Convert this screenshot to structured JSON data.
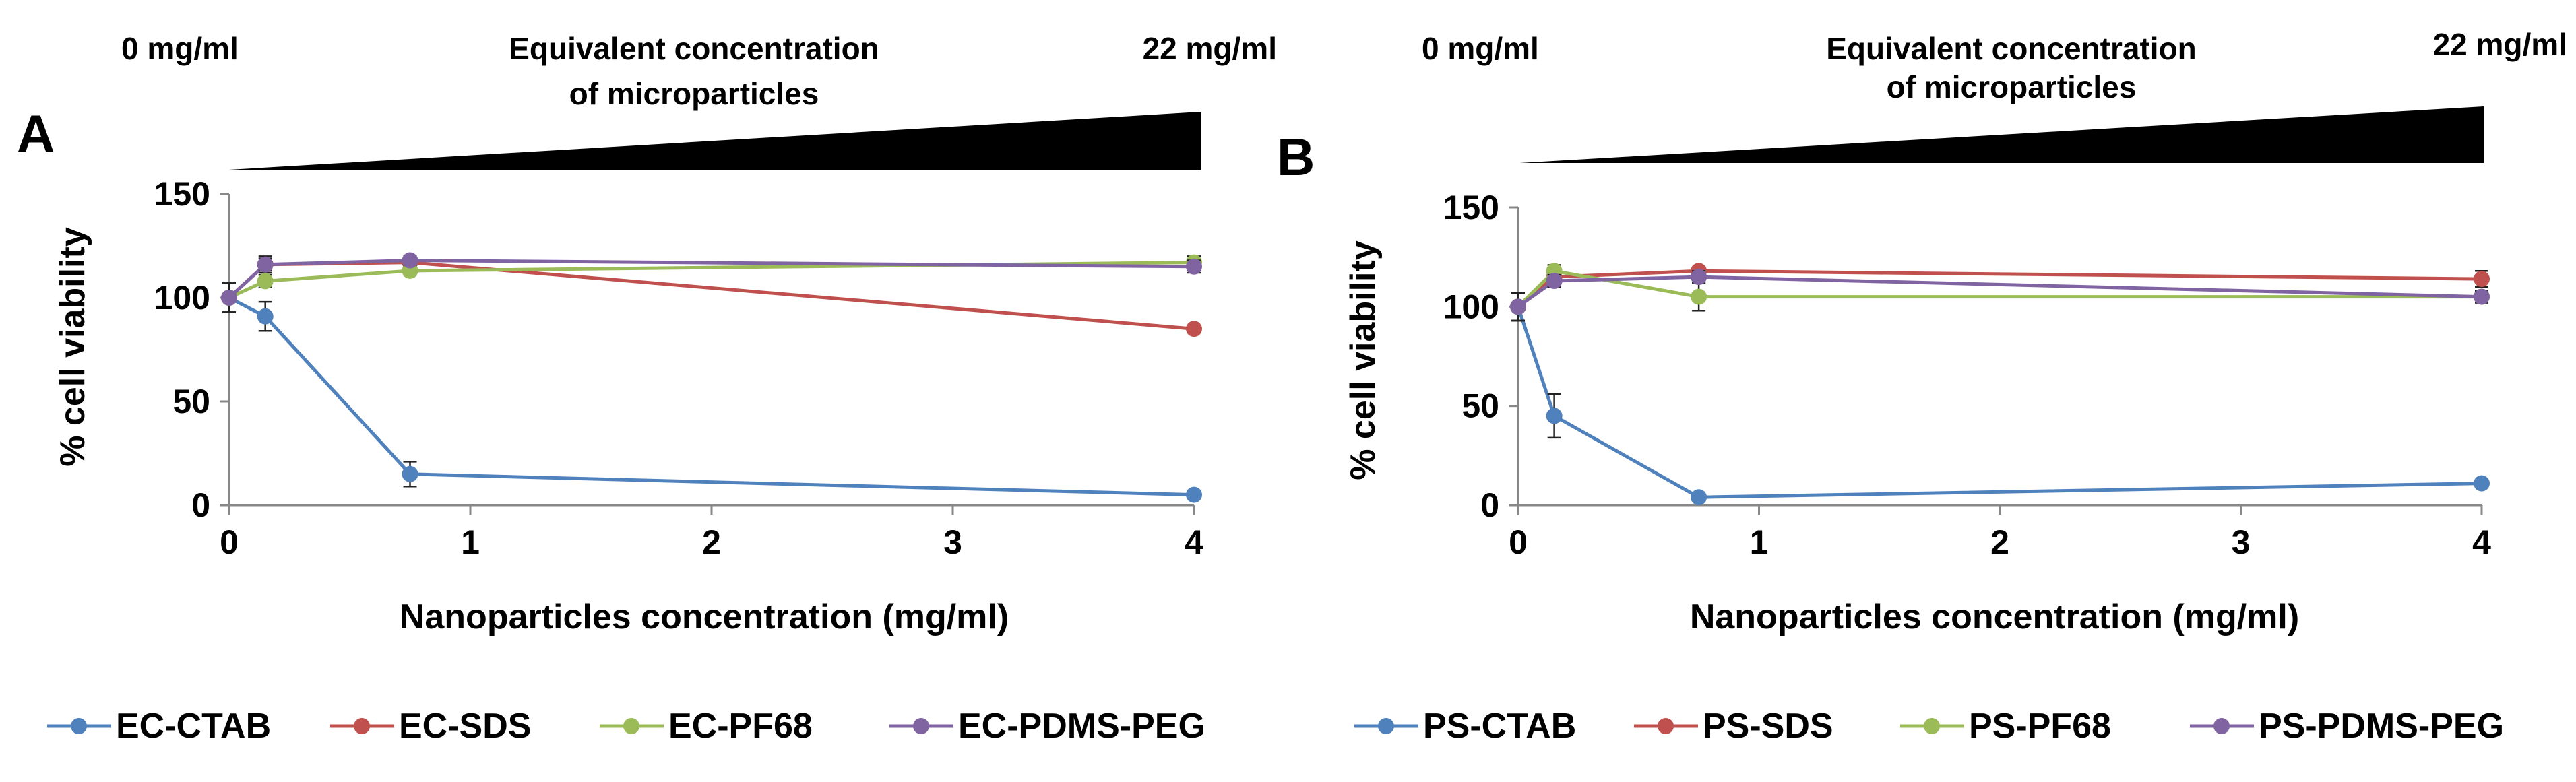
{
  "chart_data": [
    {
      "type": "line",
      "panel_label": "A",
      "wedge": {
        "left_label": "0 mg/ml",
        "right_label": "22 mg/ml",
        "center_label_line1": "Equivalent concentration",
        "center_label_line2": "of microparticles"
      },
      "xlabel": "Nanoparticles concentration (mg/ml)",
      "ylabel": "% cell viability",
      "xlim": [
        0,
        4
      ],
      "ylim": [
        0,
        150
      ],
      "xticks": [
        "0",
        "1",
        "2",
        "3",
        "4"
      ],
      "yticks": [
        "0",
        "50",
        "100",
        "150"
      ],
      "x": [
        0,
        0.15,
        0.75,
        4
      ],
      "series": [
        {
          "name": "EC-CTAB",
          "color": "#4f81bd",
          "values": [
            100,
            91,
            15,
            5
          ],
          "errors": [
            7,
            7,
            6,
            0
          ]
        },
        {
          "name": "EC-SDS",
          "color": "#c0504d",
          "values": [
            100,
            116,
            117,
            85
          ],
          "errors": [
            7,
            4,
            3,
            0
          ]
        },
        {
          "name": "EC-PF68",
          "color": "#9bbb59",
          "values": [
            100,
            108,
            113,
            117
          ],
          "errors": [
            7,
            3,
            2,
            3
          ]
        },
        {
          "name": "EC-PDMS-PEG",
          "color": "#8064a2",
          "values": [
            100,
            116,
            118,
            115
          ],
          "errors": [
            7,
            3,
            2,
            3
          ]
        }
      ]
    },
    {
      "type": "line",
      "panel_label": "B",
      "wedge": {
        "left_label": "0 mg/ml",
        "right_label": "22 mg/ml",
        "center_label_line1": "Equivalent concentration",
        "center_label_line2": "of microparticles"
      },
      "xlabel": "Nanoparticles concentration (mg/ml)",
      "ylabel": "% cell viability",
      "xlim": [
        0,
        4
      ],
      "ylim": [
        0,
        150
      ],
      "xticks": [
        "0",
        "1",
        "2",
        "3",
        "4"
      ],
      "yticks": [
        "0",
        "50",
        "100",
        "150"
      ],
      "x": [
        0,
        0.15,
        0.75,
        4
      ],
      "series": [
        {
          "name": "PS-CTAB",
          "color": "#4f81bd",
          "values": [
            100,
            45,
            4,
            11
          ],
          "errors": [
            7,
            11,
            0,
            0
          ]
        },
        {
          "name": "PS-SDS",
          "color": "#c0504d",
          "values": [
            100,
            115,
            118,
            114
          ],
          "errors": [
            7,
            3,
            2,
            4
          ]
        },
        {
          "name": "PS-PF68",
          "color": "#9bbb59",
          "values": [
            100,
            118,
            105,
            105
          ],
          "errors": [
            7,
            3,
            7,
            3
          ]
        },
        {
          "name": "PS-PDMS-PEG",
          "color": "#8064a2",
          "values": [
            100,
            113,
            115,
            105
          ],
          "errors": [
            7,
            3,
            3,
            3
          ]
        }
      ]
    }
  ]
}
